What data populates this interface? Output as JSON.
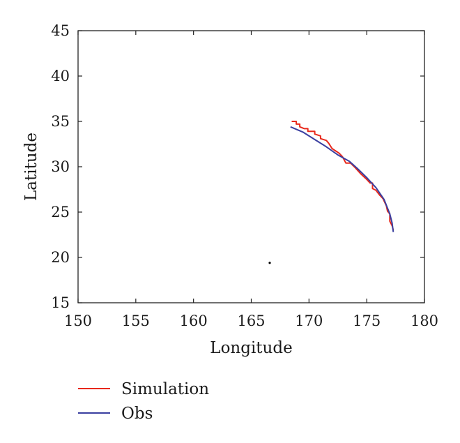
{
  "chart_data": {
    "type": "line",
    "title": "",
    "xlabel": "Longitude",
    "ylabel": "Latitude",
    "xlim": [
      150,
      180
    ],
    "ylim": [
      15,
      45
    ],
    "xticks": [
      150,
      155,
      160,
      165,
      170,
      175,
      180
    ],
    "yticks": [
      15,
      20,
      25,
      30,
      35,
      40,
      45
    ],
    "grid": false,
    "legend_position": "bottom-left below plot",
    "series": [
      {
        "name": "Simulation",
        "color": "#e8291c",
        "x": [
          168.5,
          168.9,
          168.9,
          169.2,
          169.2,
          169.6,
          169.9,
          169.9,
          170.5,
          170.5,
          171.0,
          171.0,
          171.5,
          171.7,
          172.0,
          172.6,
          172.9,
          173.2,
          173.6,
          174.0,
          174.5,
          175.0,
          175.3,
          175.5,
          175.5,
          175.8,
          176.1,
          176.4,
          176.7,
          176.8,
          177.0,
          177.0,
          177.2,
          177.3
        ],
        "y": [
          35.0,
          35.0,
          34.7,
          34.7,
          34.4,
          34.2,
          34.2,
          33.9,
          33.9,
          33.6,
          33.4,
          33.1,
          32.9,
          32.6,
          32.0,
          31.5,
          31.1,
          30.4,
          30.4,
          29.9,
          29.2,
          28.6,
          28.2,
          28.2,
          27.6,
          27.4,
          26.9,
          26.5,
          25.7,
          25.1,
          24.8,
          24.0,
          23.5,
          23.0
        ]
      },
      {
        "name": "Obs",
        "color": "#3a3fa0",
        "x": [
          168.4,
          169.5,
          170.5,
          171.5,
          172.5,
          173.5,
          174.2,
          175.0,
          175.8,
          176.5,
          177.0,
          177.2,
          177.3
        ],
        "y": [
          34.4,
          33.8,
          33.0,
          32.2,
          31.3,
          30.6,
          29.8,
          28.8,
          27.7,
          26.4,
          24.8,
          23.8,
          22.8
        ]
      }
    ],
    "annotations": [
      {
        "type": "dot",
        "x": 166.6,
        "y": 19.4,
        "color": "#000000"
      }
    ]
  }
}
